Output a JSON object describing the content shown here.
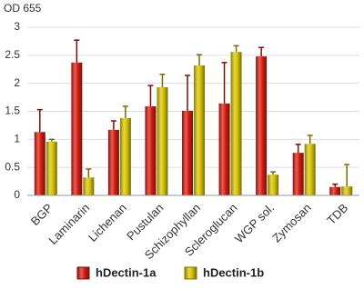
{
  "chart_data": {
    "type": "bar",
    "y_label": "OD 655",
    "categories": [
      "BGP",
      "Laminarin",
      "Lichenan",
      "Pustulan",
      "Schizophyllan",
      "Scleroglucan",
      "WGP sol.",
      "Zymosan",
      "TDB"
    ],
    "series": [
      {
        "name": "hDectin-1a",
        "color": "#d81c10",
        "values": [
          1.13,
          2.37,
          1.17,
          1.59,
          1.51,
          1.64,
          2.48,
          0.76,
          0.15
        ],
        "errors": [
          0.4,
          0.4,
          0.16,
          0.37,
          0.63,
          0.73,
          0.16,
          0.15,
          0.05
        ]
      },
      {
        "name": "hDectin-1b",
        "color": "#d8c400",
        "values": [
          0.96,
          0.32,
          1.38,
          1.93,
          2.32,
          2.56,
          0.37,
          0.92,
          0.16
        ],
        "errors": [
          0.04,
          0.15,
          0.21,
          0.23,
          0.19,
          0.11,
          0.05,
          0.15,
          0.39
        ]
      }
    ],
    "ylim": [
      0,
      3
    ],
    "yticks": [
      0,
      0.5,
      1,
      1.5,
      2,
      2.5,
      3
    ],
    "grid": true
  }
}
